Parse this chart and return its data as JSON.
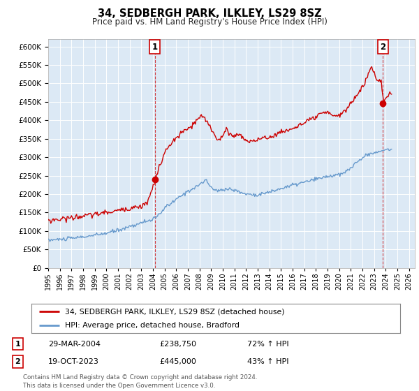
{
  "title": "34, SEDBERGH PARK, ILKLEY, LS29 8SZ",
  "subtitle": "Price paid vs. HM Land Registry's House Price Index (HPI)",
  "legend_line1": "34, SEDBERGH PARK, ILKLEY, LS29 8SZ (detached house)",
  "legend_line2": "HPI: Average price, detached house, Bradford",
  "sale1_date": "29-MAR-2004",
  "sale1_price": 238750,
  "sale1_label": "72% ↑ HPI",
  "sale2_date": "19-OCT-2023",
  "sale2_price": 445000,
  "sale2_label": "43% ↑ HPI",
  "red_color": "#cc0000",
  "blue_color": "#6699cc",
  "bg_color": "#dce9f5",
  "plot_bg": "#ffffff",
  "footer": "Contains HM Land Registry data © Crown copyright and database right 2024.\nThis data is licensed under the Open Government Licence v3.0.",
  "ylim": [
    0,
    620000
  ],
  "yticks": [
    0,
    50000,
    100000,
    150000,
    200000,
    250000,
    300000,
    350000,
    400000,
    450000,
    500000,
    550000,
    600000
  ],
  "xlim_start": 1995.0,
  "xlim_end": 2026.5,
  "hpi_keypoints": [
    [
      1995.0,
      75000
    ],
    [
      1996,
      77000
    ],
    [
      1997,
      80000
    ],
    [
      1998,
      84000
    ],
    [
      1999,
      88000
    ],
    [
      2000,
      94000
    ],
    [
      2001,
      102000
    ],
    [
      2002,
      112000
    ],
    [
      2003,
      122000
    ],
    [
      2004,
      132000
    ],
    [
      2004.25,
      134000
    ],
    [
      2005,
      162000
    ],
    [
      2006,
      185000
    ],
    [
      2007,
      208000
    ],
    [
      2008.0,
      225000
    ],
    [
      2008.5,
      238000
    ],
    [
      2009.0,
      218000
    ],
    [
      2009.5,
      208000
    ],
    [
      2010,
      212000
    ],
    [
      2010.5,
      215000
    ],
    [
      2011,
      210000
    ],
    [
      2011.5,
      205000
    ],
    [
      2012,
      200000
    ],
    [
      2013,
      198000
    ],
    [
      2014,
      205000
    ],
    [
      2015,
      215000
    ],
    [
      2016,
      224000
    ],
    [
      2017,
      232000
    ],
    [
      2018,
      240000
    ],
    [
      2019,
      248000
    ],
    [
      2020.0,
      252000
    ],
    [
      2020.5,
      258000
    ],
    [
      2021,
      272000
    ],
    [
      2021.5,
      285000
    ],
    [
      2022,
      298000
    ],
    [
      2022.5,
      308000
    ],
    [
      2023.0,
      312000
    ],
    [
      2023.5,
      315000
    ],
    [
      2024.0,
      320000
    ],
    [
      2024.5,
      322000
    ]
  ],
  "red_keypoints": [
    [
      1995.0,
      128000
    ],
    [
      1996,
      132000
    ],
    [
      1997,
      136000
    ],
    [
      1998,
      140000
    ],
    [
      1999,
      145000
    ],
    [
      2000,
      150000
    ],
    [
      2001,
      155000
    ],
    [
      2002,
      162000
    ],
    [
      2003,
      168000
    ],
    [
      2003.5,
      175000
    ],
    [
      2004.23,
      238750
    ],
    [
      2004.5,
      270000
    ],
    [
      2005,
      310000
    ],
    [
      2005.5,
      335000
    ],
    [
      2006,
      350000
    ],
    [
      2006.5,
      368000
    ],
    [
      2007,
      375000
    ],
    [
      2007.5,
      390000
    ],
    [
      2008.0,
      407000
    ],
    [
      2008.3,
      410000
    ],
    [
      2008.8,
      390000
    ],
    [
      2009.2,
      365000
    ],
    [
      2009.6,
      348000
    ],
    [
      2010.0,
      355000
    ],
    [
      2010.3,
      375000
    ],
    [
      2010.6,
      365000
    ],
    [
      2011.0,
      355000
    ],
    [
      2011.4,
      365000
    ],
    [
      2011.8,
      350000
    ],
    [
      2012.2,
      342000
    ],
    [
      2012.6,
      345000
    ],
    [
      2013.0,
      348000
    ],
    [
      2013.5,
      350000
    ],
    [
      2014.0,
      355000
    ],
    [
      2014.5,
      360000
    ],
    [
      2015.0,
      368000
    ],
    [
      2015.5,
      372000
    ],
    [
      2016.0,
      378000
    ],
    [
      2016.5,
      385000
    ],
    [
      2017.0,
      392000
    ],
    [
      2017.5,
      400000
    ],
    [
      2018.0,
      408000
    ],
    [
      2018.5,
      418000
    ],
    [
      2019.0,
      420000
    ],
    [
      2019.5,
      415000
    ],
    [
      2020.0,
      412000
    ],
    [
      2020.5,
      425000
    ],
    [
      2021.0,
      445000
    ],
    [
      2021.5,
      468000
    ],
    [
      2022.0,
      490000
    ],
    [
      2022.3,
      510000
    ],
    [
      2022.6,
      530000
    ],
    [
      2022.8,
      545000
    ],
    [
      2023.0,
      530000
    ],
    [
      2023.2,
      515000
    ],
    [
      2023.4,
      505000
    ],
    [
      2023.6,
      510000
    ],
    [
      2023.8,
      445000
    ],
    [
      2024.0,
      460000
    ],
    [
      2024.3,
      470000
    ],
    [
      2024.5,
      475000
    ]
  ]
}
